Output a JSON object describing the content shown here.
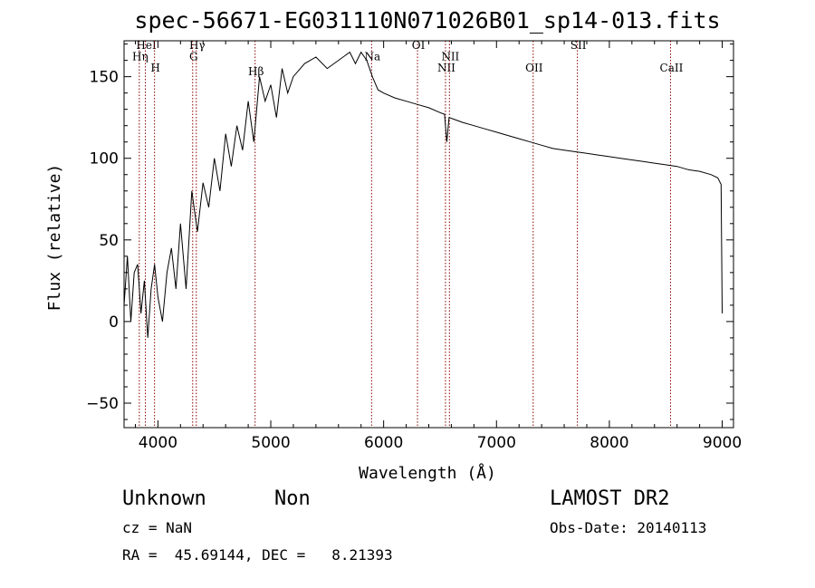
{
  "chart_data": {
    "type": "line",
    "title": "spec-56671-EG031110N071026B01_sp14-013.fits",
    "xlabel": "Wavelength (Å)",
    "ylabel": "Flux (relative)",
    "xlim": [
      3700,
      9100
    ],
    "ylim": [
      -65,
      172
    ],
    "xticks": [
      4000,
      5000,
      6000,
      7000,
      8000,
      9000
    ],
    "yticks": [
      -50,
      0,
      50,
      100,
      150
    ],
    "grid": false,
    "line_color": "#000000",
    "marker_color": "#8b0000",
    "series": [
      {
        "x": [
          3700,
          3730,
          3760,
          3790,
          3820,
          3850,
          3880,
          3910,
          3940,
          3970,
          4000,
          4040,
          4080,
          4120,
          4160,
          4200,
          4250,
          4300,
          4350,
          4400,
          4450,
          4500,
          4550,
          4600,
          4650,
          4700,
          4750,
          4800,
          4850,
          4900,
          4950,
          5000,
          5050,
          5100,
          5150,
          5200,
          5300,
          5400,
          5500,
          5600,
          5700,
          5750,
          5800,
          5850,
          5900,
          5950,
          6000,
          6100,
          6200,
          6300,
          6400,
          6500,
          6540,
          6560,
          6580,
          6620,
          6700,
          6800,
          6900,
          7000,
          7100,
          7200,
          7300,
          7400,
          7500,
          7600,
          7700,
          7800,
          7900,
          8000,
          8100,
          8200,
          8300,
          8400,
          8500,
          8600,
          8700,
          8800,
          8900,
          8960,
          8990,
          9000
        ],
        "y": [
          10,
          40,
          0,
          30,
          35,
          5,
          25,
          -10,
          20,
          35,
          15,
          0,
          30,
          45,
          20,
          60,
          20,
          80,
          55,
          85,
          70,
          100,
          80,
          115,
          95,
          120,
          105,
          135,
          110,
          150,
          135,
          145,
          125,
          155,
          140,
          150,
          158,
          162,
          155,
          160,
          165,
          158,
          165,
          160,
          150,
          142,
          140,
          137,
          135,
          133,
          131,
          128,
          127,
          110,
          125,
          124,
          122,
          120,
          118,
          116,
          114,
          112,
          110,
          108,
          106,
          105,
          104,
          103,
          102,
          101,
          100,
          99,
          98,
          97,
          96,
          95,
          93,
          92,
          90,
          88,
          84,
          5
        ]
      }
    ],
    "annotations": [
      {
        "text": "Hη",
        "x": 3835,
        "y": 160,
        "line": 3835
      },
      {
        "text": "HeI",
        "x": 3889,
        "y": 167,
        "line": 3889
      },
      {
        "text": "H",
        "x": 3970,
        "y": 153,
        "line": 3970
      },
      {
        "text": "Hγ",
        "x": 4340,
        "y": 167,
        "line": 4340
      },
      {
        "text": "G",
        "x": 4308,
        "y": 160,
        "line": 4308
      },
      {
        "text": "Hβ",
        "x": 4861,
        "y": 151,
        "line": 4861
      },
      {
        "text": "Na",
        "x": 5893,
        "y": 160,
        "line": 5893
      },
      {
        "text": "OI",
        "x": 6300,
        "y": 167,
        "line": 6300
      },
      {
        "text": "NII",
        "x": 6548,
        "y": 153,
        "line": 6548
      },
      {
        "text": "NII",
        "x": 6583,
        "y": 160,
        "line": 6583
      },
      {
        "text": "OII",
        "x": 7325,
        "y": 153,
        "line": 7325
      },
      {
        "text": "SII",
        "x": 7717,
        "y": 167,
        "line": 7717
      },
      {
        "text": "CaII",
        "x": 8542,
        "y": 153,
        "line": 8542
      }
    ]
  },
  "footer": {
    "class_label": "Unknown",
    "subclass_label": "Non",
    "survey": "LAMOST DR2",
    "cz": "cz = NaN",
    "obs_date": "Obs-Date: 20140113",
    "coords": "RA =  45.69144, DEC =   8.21393"
  }
}
